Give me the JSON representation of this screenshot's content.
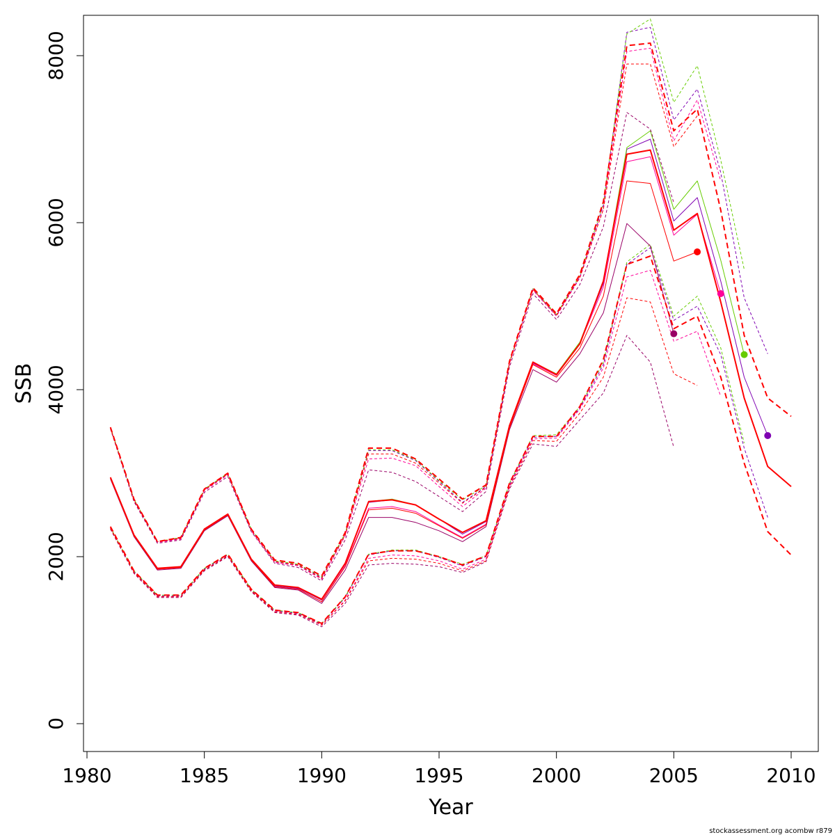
{
  "chart_data": {
    "type": "line",
    "title": "",
    "xlabel": "Year",
    "ylabel": "SSB",
    "xlim": [
      1980,
      2010
    ],
    "ylim": [
      0,
      8400
    ],
    "x_ticks": [
      1980,
      1985,
      1990,
      1995,
      2000,
      2005,
      2010
    ],
    "y_ticks": [
      0,
      2000,
      4000,
      6000,
      8000
    ],
    "x_tick_labels": [
      "1980",
      "1985",
      "1990",
      "1995",
      "2000",
      "2005",
      "2010"
    ],
    "y_tick_labels": [
      "0",
      "2000",
      "4000",
      "6000",
      "8000"
    ],
    "grid": false,
    "colors": {
      "red": "#ff0000",
      "green": "#66cc00",
      "purple": "#7f00b2",
      "magenta": "#ff0099",
      "darkmagenta": "#990066"
    },
    "series": [
      {
        "color": "#7f00b2",
        "style": "dashed",
        "x": [
          1981,
          1982,
          1983,
          1984,
          1985,
          1986,
          1987,
          1988,
          1989,
          1990,
          1991,
          1992,
          1993,
          1994,
          1995,
          1996,
          1997,
          1998,
          1999,
          2000,
          2001,
          2002,
          2003,
          2004,
          2005,
          2006,
          2007,
          2008,
          2009
        ],
        "values": [
          3540,
          2680,
          2170,
          2220,
          2800,
          2990,
          2320,
          1940,
          1900,
          1750,
          2270,
          3270,
          3270,
          3150,
          2900,
          2650,
          2840,
          4320,
          5200,
          4890,
          5350,
          6210,
          8280,
          8340,
          7230,
          7600,
          6600,
          5100,
          4430
        ]
      },
      {
        "color": "#7f00b2",
        "style": "solid",
        "x": [
          1981,
          1982,
          1983,
          1984,
          1985,
          1986,
          1987,
          1988,
          1989,
          1990,
          1991,
          1992,
          1993,
          1994,
          1995,
          1996,
          1997,
          1998,
          1999,
          2000,
          2001,
          2002,
          2003,
          2004,
          2005,
          2006,
          2007,
          2008,
          2009
        ],
        "values": [
          2940,
          2250,
          1860,
          1880,
          2330,
          2500,
          1960,
          1650,
          1620,
          1480,
          1910,
          2650,
          2680,
          2620,
          2450,
          2270,
          2420,
          3560,
          4320,
          4180,
          4560,
          5270,
          6880,
          7000,
          6020,
          6300,
          5300,
          4150,
          3450
        ]
      },
      {
        "color": "#7f00b2",
        "style": "dashed",
        "x": [
          1981,
          1982,
          1983,
          1984,
          1985,
          1986,
          1987,
          1988,
          1989,
          1990,
          1991,
          1992,
          1993,
          1994,
          1995,
          1996,
          1997,
          1998,
          1999,
          2000,
          2001,
          2002,
          2003,
          2004,
          2005,
          2006,
          2007,
          2008,
          2009
        ],
        "values": [
          2340,
          1820,
          1530,
          1530,
          1850,
          2020,
          1600,
          1350,
          1320,
          1190,
          1510,
          2020,
          2070,
          2070,
          1990,
          1890,
          2000,
          2860,
          3430,
          3440,
          3780,
          4300,
          5500,
          5700,
          4830,
          5000,
          4420,
          3300,
          2470
        ]
      },
      {
        "color": "#66cc00",
        "style": "dashed",
        "x": [
          1981,
          1982,
          1983,
          1984,
          1985,
          1986,
          1987,
          1988,
          1989,
          1990,
          1991,
          1992,
          1993,
          1994,
          1995,
          1996,
          1997,
          1998,
          1999,
          2000,
          2001,
          2002,
          2003,
          2004,
          2005,
          2006,
          2007,
          2008
        ],
        "values": [
          3550,
          2690,
          2180,
          2230,
          2810,
          3000,
          2330,
          1950,
          1910,
          1760,
          2280,
          3280,
          3280,
          3160,
          2910,
          2680,
          2850,
          4330,
          5210,
          4900,
          5370,
          6230,
          8260,
          8440,
          7440,
          7880,
          6750,
          5440
        ]
      },
      {
        "color": "#66cc00",
        "style": "solid",
        "x": [
          1981,
          1982,
          1983,
          1984,
          1985,
          1986,
          1987,
          1988,
          1989,
          1990,
          1991,
          1992,
          1993,
          1994,
          1995,
          1996,
          1997,
          1998,
          1999,
          2000,
          2001,
          2002,
          2003,
          2004,
          2005,
          2006,
          2007,
          2008
        ],
        "values": [
          2950,
          2260,
          1860,
          1880,
          2330,
          2510,
          1970,
          1660,
          1630,
          1490,
          1920,
          2660,
          2690,
          2620,
          2450,
          2290,
          2430,
          3570,
          4330,
          4190,
          4570,
          5290,
          6900,
          7100,
          6160,
          6500,
          5550,
          4420
        ]
      },
      {
        "color": "#66cc00",
        "style": "dashed",
        "x": [
          1981,
          1982,
          1983,
          1984,
          1985,
          1986,
          1987,
          1988,
          1989,
          1990,
          1991,
          1992,
          1993,
          1994,
          1995,
          1996,
          1997,
          1998,
          1999,
          2000,
          2001,
          2002,
          2003,
          2004,
          2005,
          2006,
          2007,
          2008
        ],
        "values": [
          2350,
          1830,
          1540,
          1540,
          1860,
          2030,
          1610,
          1360,
          1330,
          1200,
          1520,
          2030,
          2080,
          2080,
          2000,
          1910,
          2010,
          2880,
          3450,
          3460,
          3800,
          4330,
          5530,
          5740,
          4880,
          5120,
          4500,
          3360
        ]
      },
      {
        "color": "#ff0099",
        "style": "dashed",
        "x": [
          1981,
          1982,
          1983,
          1984,
          1985,
          1986,
          1987,
          1988,
          1989,
          1990,
          1991,
          1992,
          1993,
          1994,
          1995,
          1996,
          1997,
          1998,
          1999,
          2000,
          2001,
          2002,
          2003,
          2004,
          2005,
          2006,
          2007
        ],
        "values": [
          3540,
          2670,
          2170,
          2210,
          2790,
          2980,
          2310,
          1930,
          1890,
          1730,
          2250,
          3170,
          3180,
          3090,
          2840,
          2600,
          2820,
          4310,
          5190,
          4880,
          5340,
          6160,
          8050,
          8090,
          6980,
          7470,
          6500
        ]
      },
      {
        "color": "#ff0099",
        "style": "solid",
        "x": [
          1981,
          1982,
          1983,
          1984,
          1985,
          1986,
          1987,
          1988,
          1989,
          1990,
          1991,
          1992,
          1993,
          1994,
          1995,
          1996,
          1997,
          1998,
          1999,
          2000,
          2001,
          2002,
          2003,
          2004,
          2005,
          2006,
          2007
        ],
        "values": [
          2940,
          2250,
          1850,
          1870,
          2320,
          2500,
          1960,
          1640,
          1610,
          1460,
          1890,
          2580,
          2600,
          2540,
          2380,
          2230,
          2390,
          3550,
          4310,
          4170,
          4550,
          5230,
          6730,
          6790,
          5850,
          6100,
          5150
        ]
      },
      {
        "color": "#ff0099",
        "style": "dashed",
        "x": [
          1981,
          1982,
          1983,
          1984,
          1985,
          1986,
          1987,
          1988,
          1989,
          1990,
          1991,
          1992,
          1993,
          1994,
          1995,
          1996,
          1997,
          1998,
          1999,
          2000,
          2001,
          2002,
          2003,
          2004,
          2005,
          2006,
          2007
        ],
        "values": [
          2340,
          1810,
          1520,
          1520,
          1840,
          2010,
          1590,
          1340,
          1310,
          1180,
          1480,
          1980,
          2020,
          2010,
          1950,
          1850,
          1970,
          2840,
          3410,
          3420,
          3770,
          4260,
          5350,
          5430,
          4580,
          4700,
          3920
        ]
      },
      {
        "color": "#990066",
        "style": "dashed",
        "x": [
          1981,
          1982,
          1983,
          1984,
          1985,
          1986,
          1987,
          1988,
          1989,
          1990,
          1991,
          1992,
          1993,
          1994,
          1995,
          1996,
          1997,
          1998,
          1999,
          2000,
          2001,
          2002,
          2003,
          2004,
          2005
        ],
        "values": [
          3530,
          2660,
          2160,
          2200,
          2770,
          2960,
          2300,
          1920,
          1870,
          1710,
          2200,
          3040,
          3010,
          2900,
          2720,
          2540,
          2780,
          4270,
          5150,
          4840,
          5260,
          5950,
          7320,
          7120,
          6240
        ]
      },
      {
        "color": "#990066",
        "style": "solid",
        "x": [
          1981,
          1982,
          1983,
          1984,
          1985,
          1986,
          1987,
          1988,
          1989,
          1990,
          1991,
          1992,
          1993,
          1994,
          1995,
          1996,
          1997,
          1998,
          1999,
          2000,
          2001,
          2002,
          2003,
          2004,
          2005
        ],
        "values": [
          2930,
          2240,
          1840,
          1860,
          2310,
          2490,
          1950,
          1630,
          1600,
          1440,
          1840,
          2470,
          2470,
          2410,
          2310,
          2180,
          2360,
          3520,
          4240,
          4090,
          4430,
          4920,
          5990,
          5720,
          4670
        ]
      },
      {
        "color": "#990066",
        "style": "dashed",
        "x": [
          1981,
          1982,
          1983,
          1984,
          1985,
          1986,
          1987,
          1988,
          1989,
          1990,
          1991,
          1992,
          1993,
          1994,
          1995,
          1996,
          1997,
          1998,
          1999,
          2000,
          2001,
          2002,
          2003,
          2004,
          2005
        ],
        "values": [
          2330,
          1800,
          1510,
          1510,
          1830,
          2000,
          1580,
          1330,
          1300,
          1160,
          1440,
          1900,
          1920,
          1910,
          1880,
          1810,
          1940,
          2810,
          3350,
          3320,
          3640,
          3960,
          4650,
          4330,
          3310
        ]
      },
      {
        "color": "#ff0000",
        "style": "dashed",
        "width": 1,
        "x": [
          1981,
          1982,
          1983,
          1984,
          1985,
          1986,
          1987,
          1988,
          1989,
          1990,
          1991,
          1992,
          1993,
          1994,
          1995,
          1996,
          1997,
          1998,
          1999,
          2000,
          2001,
          2002,
          2003,
          2004,
          2005,
          2006
        ],
        "values": [
          3540,
          2680,
          2180,
          2220,
          2800,
          2990,
          2320,
          1940,
          1900,
          1740,
          2260,
          3230,
          3230,
          3120,
          2880,
          2640,
          2830,
          4320,
          5200,
          4890,
          5350,
          6160,
          7900,
          7900,
          6910,
          7280
        ]
      },
      {
        "color": "#ff0000",
        "style": "solid",
        "width": 1,
        "x": [
          1981,
          1982,
          1983,
          1984,
          1985,
          1986,
          1987,
          1988,
          1989,
          1990,
          1991,
          1992,
          1993,
          1994,
          1995,
          1996,
          1997,
          1998,
          1999,
          2000,
          2001,
          2002,
          2003,
          2004,
          2005,
          2006
        ],
        "values": [
          2940,
          2250,
          1850,
          1870,
          2320,
          2500,
          1960,
          1640,
          1610,
          1460,
          1880,
          2560,
          2580,
          2520,
          2370,
          2220,
          2380,
          3540,
          4300,
          4150,
          4500,
          5120,
          6500,
          6470,
          5540,
          5650
        ]
      },
      {
        "color": "#ff0000",
        "style": "dashed",
        "width": 1,
        "x": [
          1981,
          1982,
          1983,
          1984,
          1985,
          1986,
          1987,
          1988,
          1989,
          1990,
          1991,
          1992,
          1993,
          1994,
          1995,
          1996,
          1997,
          1998,
          1999,
          2000,
          2001,
          2002,
          2003,
          2004,
          2005,
          2006
        ],
        "values": [
          2340,
          1810,
          1520,
          1520,
          1840,
          2010,
          1590,
          1340,
          1310,
          1180,
          1470,
          1950,
          1980,
          1970,
          1920,
          1830,
          1950,
          2830,
          3390,
          3380,
          3720,
          4150,
          5100,
          5050,
          4190,
          4050
        ]
      },
      {
        "color": "#ff0000",
        "style": "dashed",
        "width": 2,
        "x": [
          1981,
          1982,
          1983,
          1984,
          1985,
          1986,
          1987,
          1988,
          1989,
          1990,
          1991,
          1992,
          1993,
          1994,
          1995,
          1996,
          1997,
          1998,
          1999,
          2000,
          2001,
          2002,
          2003,
          2004,
          2005,
          2006,
          2007,
          2008,
          2009,
          2010
        ],
        "values": [
          3550,
          2690,
          2180,
          2230,
          2810,
          3000,
          2330,
          1960,
          1920,
          1770,
          2290,
          3300,
          3300,
          3170,
          2930,
          2690,
          2860,
          4340,
          5220,
          4910,
          5380,
          6250,
          8120,
          8150,
          7100,
          7360,
          6150,
          4650,
          3900,
          3680
        ]
      },
      {
        "color": "#ff0000",
        "style": "solid",
        "width": 2,
        "x": [
          1981,
          1982,
          1983,
          1984,
          1985,
          1986,
          1987,
          1988,
          1989,
          1990,
          1991,
          1992,
          1993,
          1994,
          1995,
          1996,
          1997,
          1998,
          1999,
          2000,
          2001,
          2002,
          2003,
          2004,
          2005,
          2006,
          2007,
          2008,
          2009,
          2010
        ],
        "values": [
          2950,
          2260,
          1860,
          1880,
          2330,
          2510,
          1970,
          1660,
          1630,
          1490,
          1920,
          2660,
          2680,
          2620,
          2450,
          2290,
          2430,
          3570,
          4330,
          4180,
          4550,
          5300,
          6820,
          6870,
          5910,
          6110,
          5050,
          3900,
          3080,
          2840
        ]
      },
      {
        "color": "#ff0000",
        "style": "dashed",
        "width": 2,
        "x": [
          1981,
          1982,
          1983,
          1984,
          1985,
          1986,
          1987,
          1988,
          1989,
          1990,
          1991,
          1992,
          1993,
          1994,
          1995,
          1996,
          1997,
          1998,
          1999,
          2000,
          2001,
          2002,
          2003,
          2004,
          2005,
          2006,
          2007,
          2008,
          2009,
          2010
        ],
        "values": [
          2360,
          1830,
          1540,
          1540,
          1860,
          2030,
          1610,
          1360,
          1330,
          1200,
          1520,
          2030,
          2070,
          2070,
          2000,
          1900,
          2010,
          2880,
          3440,
          3440,
          3800,
          4360,
          5500,
          5600,
          4730,
          4880,
          4150,
          3120,
          2300,
          2020
        ]
      }
    ],
    "points": [
      {
        "x": 2005,
        "y": 4670,
        "color": "#990066"
      },
      {
        "x": 2006,
        "y": 5650,
        "color": "#ff0000"
      },
      {
        "x": 2007,
        "y": 5150,
        "color": "#ff0099"
      },
      {
        "x": 2008,
        "y": 4420,
        "color": "#66cc00"
      },
      {
        "x": 2009,
        "y": 3450,
        "color": "#7f00b2"
      }
    ]
  },
  "credit": "stockassessment.org acombw r879"
}
